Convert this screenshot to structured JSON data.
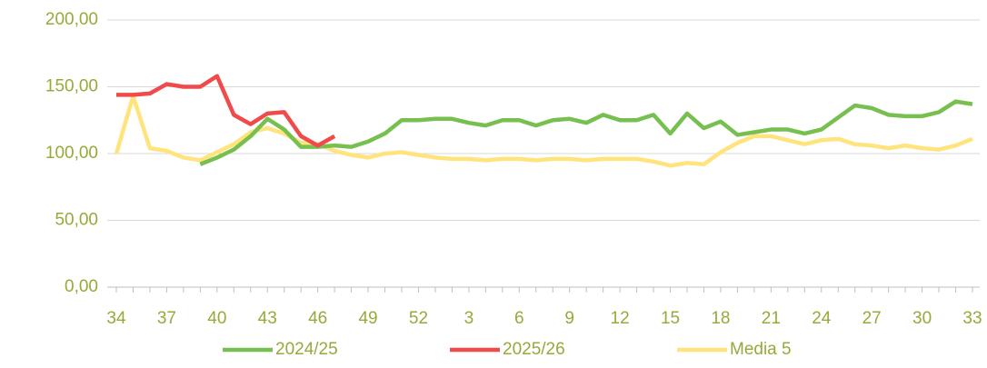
{
  "chart_data": {
    "type": "line",
    "categories": [
      "34",
      null,
      null,
      "37",
      null,
      null,
      "40",
      null,
      null,
      "43",
      null,
      null,
      "46",
      null,
      null,
      "49",
      null,
      null,
      "52",
      null,
      null,
      "3",
      null,
      null,
      "6",
      null,
      null,
      "9",
      null,
      null,
      "12",
      null,
      null,
      "15",
      null,
      null,
      "18",
      null,
      null,
      "21",
      null,
      null,
      "24",
      null,
      null,
      "27",
      null,
      null,
      "30",
      null,
      null,
      "33"
    ],
    "series": [
      {
        "name": "2024/25",
        "color": "#77c04f",
        "values": [
          null,
          null,
          null,
          null,
          null,
          92,
          97,
          103,
          113,
          126,
          118,
          105,
          105,
          106,
          105,
          109,
          115,
          125,
          125,
          126,
          126,
          123,
          121,
          125,
          125,
          121,
          125,
          126,
          123,
          129,
          125,
          125,
          129,
          115,
          130,
          119,
          124,
          114,
          116,
          118,
          118,
          115,
          118,
          127,
          136,
          134,
          129,
          128,
          128,
          131,
          139,
          137
        ]
      },
      {
        "name": "2025/26",
        "color": "#f04a4a",
        "values": [
          144,
          144,
          145,
          152,
          150,
          150,
          158,
          129,
          122,
          130,
          131,
          113,
          106,
          113,
          null,
          null,
          null,
          null,
          null,
          null,
          null,
          null,
          null,
          null,
          null,
          null,
          null,
          null,
          null,
          null,
          null,
          null,
          null,
          null,
          null,
          null,
          null,
          null,
          null,
          null,
          null,
          null,
          null,
          null,
          null,
          null,
          null,
          null,
          null,
          null,
          null,
          null
        ]
      },
      {
        "name": "Media 5",
        "color": "#ffe47e",
        "values": [
          100,
          143,
          104,
          102,
          97,
          95,
          101,
          107,
          116,
          119,
          115,
          108,
          107,
          102,
          99,
          97,
          100,
          101,
          99,
          97,
          96,
          96,
          95,
          96,
          96,
          95,
          96,
          96,
          95,
          96,
          96,
          96,
          94,
          91,
          93,
          92,
          101,
          108,
          113,
          113,
          110,
          107,
          110,
          111,
          107,
          106,
          104,
          106,
          104,
          103,
          106,
          111
        ]
      }
    ],
    "ylim": [
      0,
      200
    ],
    "yticks": [
      {
        "value": 0,
        "label": "0,00"
      },
      {
        "value": 50,
        "label": "50,00"
      },
      {
        "value": 100,
        "label": "100,00"
      },
      {
        "value": 150,
        "label": "150,00"
      },
      {
        "value": 200,
        "label": "200,00"
      }
    ],
    "grid": true,
    "legend": "bottom"
  }
}
